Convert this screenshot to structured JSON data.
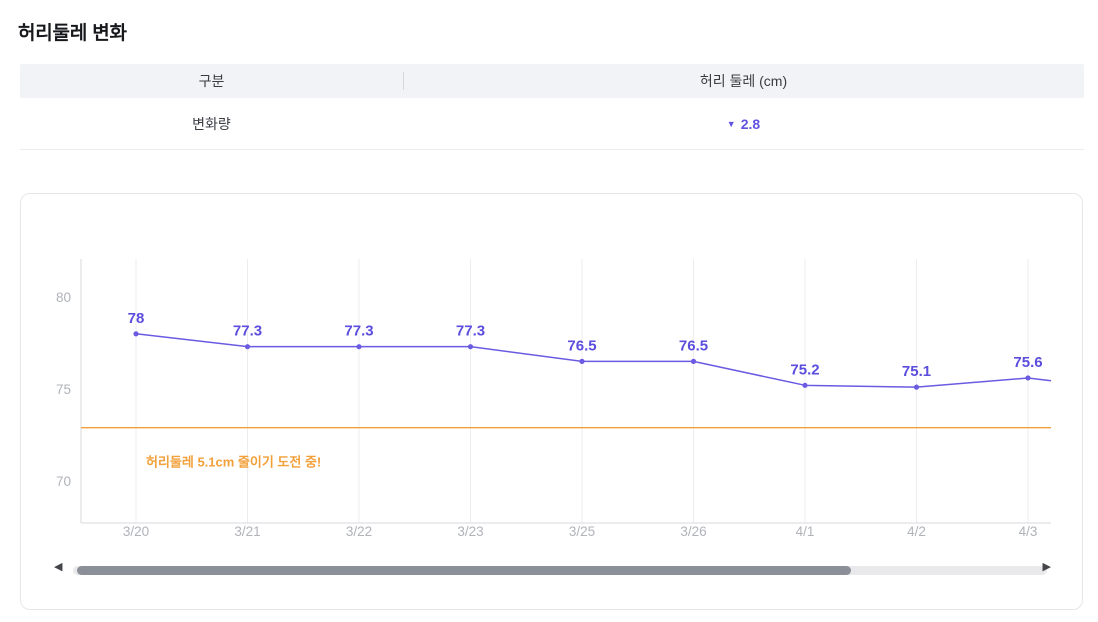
{
  "title": "허리둘레 변화",
  "table": {
    "headers": [
      "구분",
      "허리 둘레 (cm)"
    ],
    "row": {
      "label": "변화량",
      "direction_icon": "▼",
      "value": "2.8"
    }
  },
  "chart_data": {
    "type": "line",
    "x": [
      "3/20",
      "3/21",
      "3/22",
      "3/23",
      "3/25",
      "3/26",
      "4/1",
      "4/2",
      "4/3"
    ],
    "series": [
      {
        "name": "허리 둘레 (cm)",
        "values": [
          78,
          77.3,
          77.3,
          77.3,
          76.5,
          76.5,
          75.2,
          75.1,
          75.6
        ]
      }
    ],
    "point_labels": [
      "78",
      "77.3",
      "77.3",
      "77.3",
      "76.5",
      "76.5",
      "75.2",
      "75.1",
      "75.6"
    ],
    "yticks": [
      80,
      75,
      70
    ],
    "ylim": [
      67.7,
      82.1
    ],
    "grid": "vertical",
    "legend": "none",
    "goal_line": {
      "value": 72.9,
      "label": "허리둘레 5.1cm 줄이기 도전 중!",
      "color": "#f2a03a"
    },
    "trailing_edge_value": 75.45,
    "line_color": "#6a5be2",
    "point_color": "#6a5be2",
    "label_color": "#5b4ddd",
    "axis_color": "#d8dade",
    "grid_color": "#ededf1",
    "tick_color": "#b0b3b9"
  },
  "scrollbar": {
    "left_arrow": "◀",
    "right_arrow": "▶"
  },
  "colors": {
    "value_accent": "#6152e0",
    "header_bg": "#f2f3f6"
  }
}
